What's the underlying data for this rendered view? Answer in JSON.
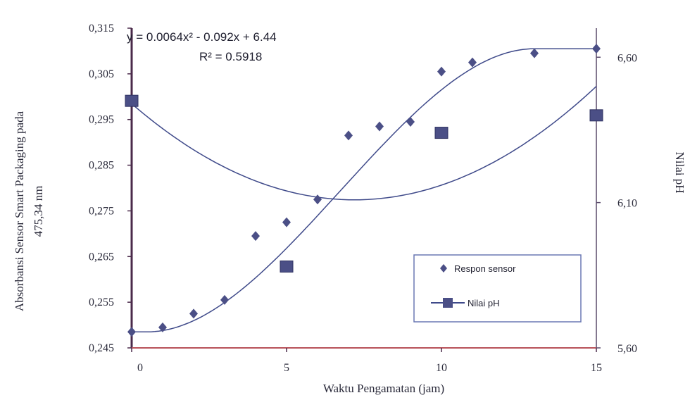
{
  "chart_data": {
    "type": "scatter",
    "xlabel": "Waktu Pengamatan (jam)",
    "ylabel_left": [
      "Absorbansi Sensor Smart Packaging pada",
      "475,34 nm"
    ],
    "ylabel_right": "Nilai pH",
    "xlim": [
      0,
      15
    ],
    "ylim_left": [
      0.245,
      0.315
    ],
    "ylim_right": [
      5.6,
      6.7
    ],
    "x_ticks": [
      "0",
      "5",
      "10",
      "15"
    ],
    "y_left_ticks": [
      "0,245",
      "0,255",
      "0,265",
      "0,275",
      "0,285",
      "0,295",
      "0,305",
      "0,315"
    ],
    "y_right_ticks": [
      "5,60",
      "6,10",
      "6,60"
    ],
    "equation": "y = 0.0064x² - 0.092x + 6.44",
    "r_squared": "R² = 0.5918",
    "legend": {
      "placement": "bottom-right",
      "entries": [
        "Respon sensor",
        "Nilai pH"
      ]
    },
    "series": [
      {
        "name": "Respon sensor",
        "axis": "left",
        "marker": "diamond",
        "color": "#4b4f86",
        "x": [
          0,
          1,
          2,
          3,
          4,
          5,
          6,
          7,
          8,
          9,
          10,
          11,
          13,
          15
        ],
        "y": [
          0.2485,
          0.2495,
          0.2525,
          0.2555,
          0.2695,
          0.2725,
          0.2775,
          0.2915,
          0.2935,
          0.2945,
          0.3055,
          0.3075,
          0.3095,
          0.3105
        ]
      },
      {
        "name": "Nilai pH",
        "axis": "right",
        "marker": "square",
        "color": "#4b4f86",
        "x": [
          0,
          5,
          10,
          15
        ],
        "y": [
          6.45,
          5.88,
          6.34,
          6.4
        ]
      }
    ],
    "trendlines": [
      {
        "series": "Respon sensor",
        "kind": "sigmoid",
        "color": "#3f4a8a"
      },
      {
        "series": "Nilai pH",
        "kind": "polynomial",
        "coefficients": [
          6.44,
          -0.092,
          0.0064
        ],
        "color": "#3f4a8a"
      }
    ]
  }
}
